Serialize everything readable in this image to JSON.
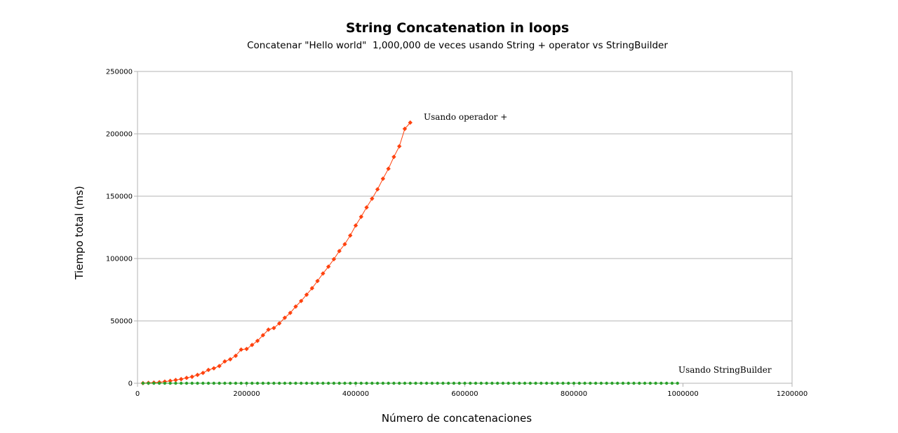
{
  "chart_data": {
    "type": "line",
    "title": "String Concatenation in loops",
    "subtitle": "Concatenar \"Hello world\"  1,000,000 de veces usando String + operator vs StringBuilder",
    "xlabel": "Número de concatenaciones",
    "ylabel": "Tiempo total (ms)",
    "xlim": [
      0,
      1200000
    ],
    "ylim": [
      0,
      250000
    ],
    "xticks": [
      "0",
      "200000",
      "400000",
      "600000",
      "800000",
      "1000000",
      "1200000"
    ],
    "yticks": [
      "0",
      "50000",
      "100000",
      "150000",
      "200000",
      "250000"
    ],
    "grid": "horizontal",
    "colors": {
      "plus": "#ff420e",
      "builder": "#2ca02c"
    },
    "series": [
      {
        "name": "Usando operador +",
        "x": [
          10000,
          20000,
          30000,
          40000,
          50000,
          60000,
          70000,
          80000,
          90000,
          100000,
          110000,
          120000,
          130000,
          140000,
          150000,
          160000,
          170000,
          180000,
          190000,
          200000,
          210000,
          220000,
          230000,
          240000,
          250000,
          260000,
          270000,
          280000,
          290000,
          300000,
          310000,
          320000,
          330000,
          340000,
          350000,
          360000,
          370000,
          380000,
          390000,
          400000,
          410000,
          420000,
          430000,
          440000,
          450000,
          460000,
          470000,
          480000,
          490000,
          500000
        ],
        "y": [
          100,
          300,
          500,
          800,
          1300,
          1900,
          2600,
          3300,
          4300,
          5200,
          6700,
          8300,
          10700,
          12000,
          13800,
          17500,
          19200,
          22000,
          27000,
          27500,
          30700,
          34000,
          38500,
          43000,
          44300,
          48000,
          52500,
          56400,
          61500,
          66000,
          71000,
          76200,
          82000,
          88000,
          93500,
          99500,
          106000,
          111500,
          118500,
          126500,
          133500,
          141000,
          148000,
          155500,
          164000,
          172000,
          181500,
          190000,
          204000,
          209000
        ]
      },
      {
        "name": "Usando StringBuilder",
        "x": [
          10000,
          20000,
          30000,
          40000,
          50000,
          60000,
          70000,
          80000,
          90000,
          100000,
          110000,
          120000,
          130000,
          140000,
          150000,
          160000,
          170000,
          180000,
          190000,
          200000,
          210000,
          220000,
          230000,
          240000,
          250000,
          260000,
          270000,
          280000,
          290000,
          300000,
          310000,
          320000,
          330000,
          340000,
          350000,
          360000,
          370000,
          380000,
          390000,
          400000,
          410000,
          420000,
          430000,
          440000,
          450000,
          460000,
          470000,
          480000,
          490000,
          500000,
          510000,
          520000,
          530000,
          540000,
          550000,
          560000,
          570000,
          580000,
          590000,
          600000,
          610000,
          620000,
          630000,
          640000,
          650000,
          660000,
          670000,
          680000,
          690000,
          700000,
          710000,
          720000,
          730000,
          740000,
          750000,
          760000,
          770000,
          780000,
          790000,
          800000,
          810000,
          820000,
          830000,
          840000,
          850000,
          860000,
          870000,
          880000,
          890000,
          900000,
          910000,
          920000,
          930000,
          940000,
          950000,
          960000,
          970000,
          980000,
          990000
        ],
        "y": [
          0,
          0,
          0,
          0,
          0,
          0,
          0,
          0,
          0,
          0,
          0,
          0,
          0,
          0,
          0,
          0,
          0,
          0,
          0,
          0,
          0,
          0,
          0,
          0,
          0,
          0,
          0,
          0,
          0,
          0,
          0,
          0,
          0,
          0,
          0,
          0,
          0,
          0,
          0,
          0,
          0,
          0,
          0,
          0,
          0,
          0,
          0,
          0,
          0,
          0,
          0,
          0,
          0,
          0,
          0,
          0,
          0,
          0,
          0,
          0,
          0,
          0,
          0,
          0,
          0,
          0,
          0,
          0,
          0,
          0,
          0,
          0,
          0,
          0,
          0,
          0,
          0,
          0,
          0,
          0,
          0,
          0,
          0,
          0,
          0,
          0,
          0,
          0,
          0,
          0,
          0,
          0,
          0,
          0,
          0,
          0,
          0,
          0,
          0
        ]
      }
    ]
  }
}
